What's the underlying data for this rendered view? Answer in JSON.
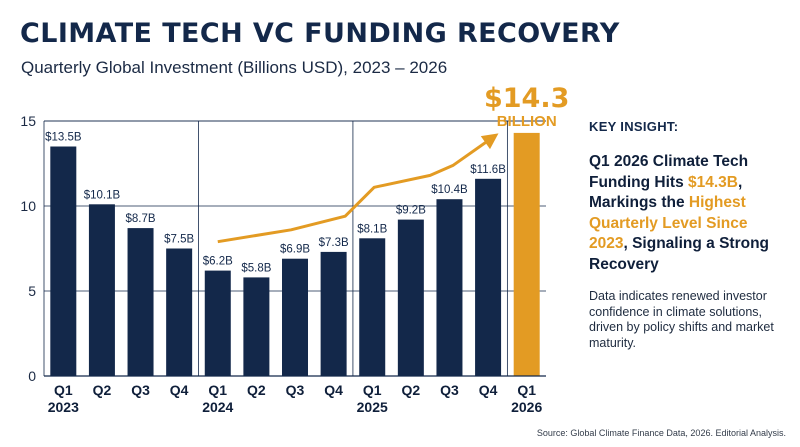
{
  "title": "CLIMATE TECH VC FUNDING RECOVERY",
  "subtitle": "Quarterly Global Investment (Billions USD), 2023 – 2026",
  "insight": {
    "label": "KEY INSIGHT:",
    "headline_parts": [
      {
        "text": "Q1 2026 Climate Tech Funding Hits ",
        "highlight": false
      },
      {
        "text": "$14.3B",
        "highlight": true
      },
      {
        "text": ", Markings the ",
        "highlight": false
      },
      {
        "text": "Highest Quarterly Level Since 2023",
        "highlight": true
      },
      {
        "text": ", Signaling a Strong Recovery",
        "highlight": false
      }
    ],
    "body": "Data indicates renewed investor confidence in climate solutions, driven by policy shifts and market maturity."
  },
  "source": "Source: Global Climate Finance Data, 2026. Editorial Analysis.",
  "chart_data": {
    "type": "bar",
    "categories": [
      "Q1 2023",
      "Q2 2023",
      "Q3 2023",
      "Q4 2023",
      "Q1 2024",
      "Q2 2024",
      "Q3 2024",
      "Q4 2024",
      "Q1 2025",
      "Q2 2025",
      "Q3 2025",
      "Q4 2025",
      "Q1 2026"
    ],
    "x_tick_quarters": [
      "Q1",
      "Q2",
      "Q3",
      "Q4",
      "Q1",
      "Q2",
      "Q3",
      "Q4",
      "Q1",
      "Q2",
      "Q3",
      "Q4",
      "Q1"
    ],
    "x_tick_years": [
      "2023",
      "",
      "",
      "",
      "2024",
      "",
      "",
      "",
      "2025",
      "",
      "",
      "",
      "2026"
    ],
    "values": [
      13.5,
      10.1,
      8.7,
      7.5,
      6.2,
      5.8,
      6.9,
      7.3,
      8.1,
      9.2,
      10.4,
      11.6,
      14.3
    ],
    "data_labels": [
      "$13.5B",
      "$10.1B",
      "$8.7B",
      "$7.5B",
      "$6.2B",
      "$5.8B",
      "$6.9B",
      "$7.3B",
      "$8.1B",
      "$9.2B",
      "$10.4B",
      "$11.6B",
      ""
    ],
    "highlight_index": 12,
    "highlight_label_value": "$14.3",
    "highlight_label_unit": "BILLION",
    "yticks": [
      0,
      5,
      10,
      15
    ],
    "ylim": [
      0,
      15
    ],
    "grid": true,
    "trend_arrow_values": [
      7.9,
      8.6,
      9.4,
      11.1,
      11.8,
      12.4,
      14.0
    ],
    "trend_arrow_quarter_index": [
      4,
      5.9,
      7.3,
      8.05,
      9.5,
      10.1,
      11.1
    ],
    "colors": {
      "bar": "#13284a",
      "highlight": "#e39b23",
      "trend": "#e39b23",
      "grid": "#13284a",
      "label": "#13284a"
    }
  }
}
